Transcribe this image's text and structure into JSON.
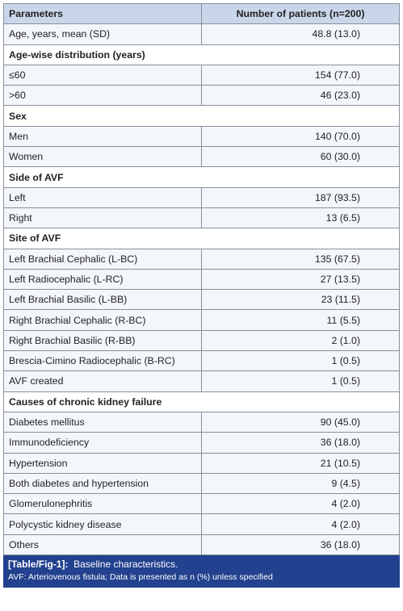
{
  "table": {
    "header": [
      "Parameters",
      "Number of patients (n=200)"
    ],
    "rows": [
      [
        "Age, years, mean (SD)",
        "48.8 (13.0)"
      ],
      [
        "Age-wise distribution (years)"
      ],
      [
        "≤60",
        "154 (77.0)"
      ],
      [
        ">60",
        "46 (23.0)"
      ],
      [
        "Sex"
      ],
      [
        "Men",
        "140 (70.0)"
      ],
      [
        "Women",
        "60 (30.0)"
      ],
      [
        "Side of AVF"
      ],
      [
        "Left",
        "187 (93.5)"
      ],
      [
        "Right",
        "13 (6.5)"
      ],
      [
        "Site of AVF"
      ],
      [
        "Left Brachial Cephalic (L-BC)",
        "135 (67.5)"
      ],
      [
        "Left Radiocephalic (L-RC)",
        "27 (13.5)"
      ],
      [
        "Left Brachial Basilic (L-BB)",
        "23 (11.5)"
      ],
      [
        "Right Brachial Cephalic (R-BC)",
        "11 (5.5)"
      ],
      [
        "Right Brachial Basilic (R-BB)",
        "2 (1.0)"
      ],
      [
        "Brescia-Cimino Radiocephalic (B-RC)",
        "1 (0.5)"
      ],
      [
        "AVF created",
        "1 (0.5)"
      ],
      [
        "Causes of chronic kidney failure"
      ],
      [
        "Diabetes mellitus",
        "90 (45.0)"
      ],
      [
        "Immunodeficiency",
        "36 (18.0)"
      ],
      [
        "Hypertension",
        "21 (10.5)"
      ],
      [
        "Both diabetes and hypertension",
        "9 (4.5)"
      ],
      [
        "Glomerulonephritis",
        "4 (2.0)"
      ],
      [
        "Polycystic kidney disease",
        "4 (2.0)"
      ],
      [
        "Others",
        "36 (18.0)"
      ]
    ],
    "caption": {
      "label": "[Table/Fig-1]:",
      "text": "Baseline characteristics.",
      "note": "AVF: Arteriovenous fistula; Data is presented as n (%) unless specified"
    }
  }
}
